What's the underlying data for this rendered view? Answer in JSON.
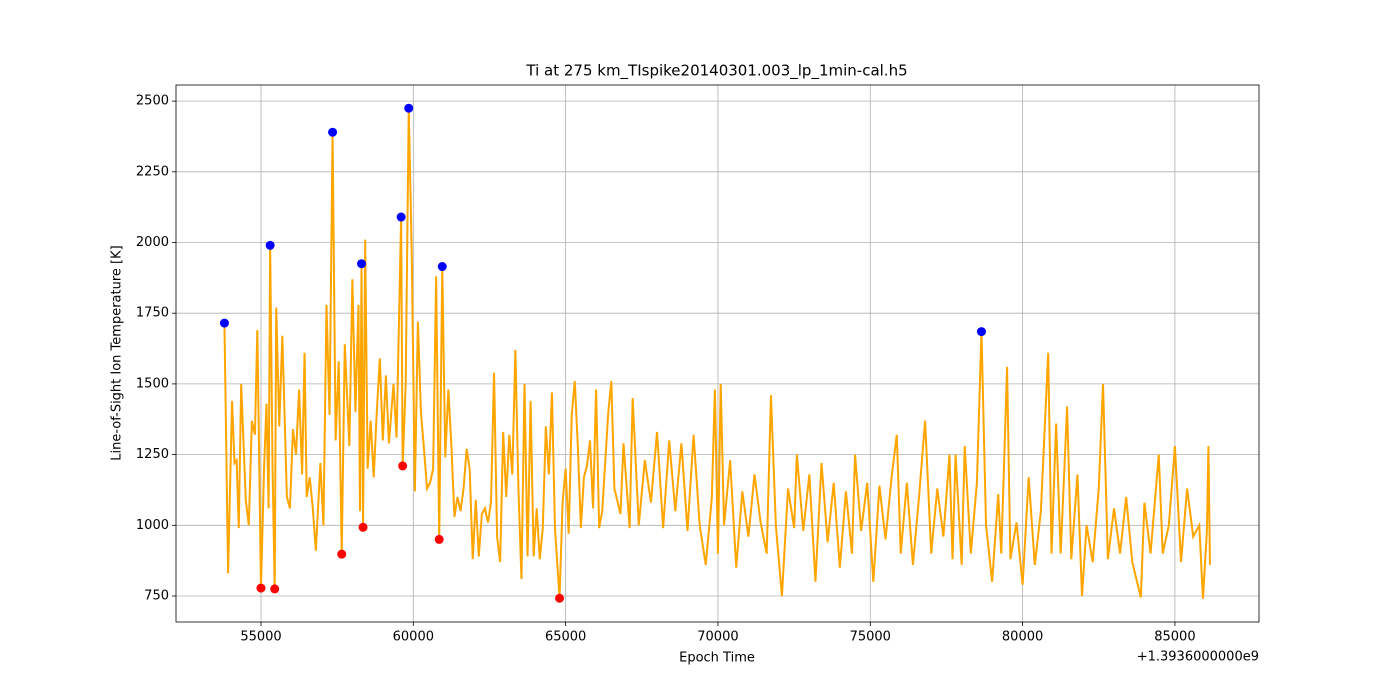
{
  "chart_data": {
    "type": "line",
    "title": "Ti at 275 km_TIspike20140301.003_lp_1min-cal.h5",
    "xlabel": "Epoch Time",
    "ylabel": "Line-of-Sight Ion Temperature [K]",
    "x_offset_label": "+1.3936000000e9",
    "xlim": [
      52210,
      87760
    ],
    "ylim": [
      658,
      2557
    ],
    "xticks": [
      55000,
      60000,
      65000,
      70000,
      75000,
      80000,
      85000
    ],
    "yticks": [
      750,
      1000,
      1250,
      1500,
      1750,
      2000,
      2250,
      2500
    ],
    "grid": true,
    "series": [
      {
        "color": "orange",
        "x": [
          53800,
          53920,
          54050,
          54130,
          54200,
          54270,
          54350,
          54500,
          54600,
          54700,
          54800,
          54880,
          55000,
          55100,
          55180,
          55250,
          55300,
          55380,
          55450,
          55500,
          55600,
          55700,
          55850,
          55950,
          56050,
          56150,
          56250,
          56350,
          56430,
          56500,
          56600,
          56700,
          56800,
          56950,
          57050,
          57150,
          57250,
          57350,
          57450,
          57550,
          57650,
          57750,
          57900,
          58000,
          58100,
          58200,
          58250,
          58300,
          58350,
          58420,
          58500,
          58600,
          58700,
          58800,
          58900,
          59000,
          59100,
          59200,
          59350,
          59450,
          59600,
          59650,
          59750,
          59850,
          59950,
          60050,
          60150,
          60250,
          60350,
          60450,
          60550,
          60650,
          60750,
          60850,
          60950,
          61050,
          61150,
          61250,
          61350,
          61450,
          61550,
          61650,
          61750,
          61850,
          61950,
          62050,
          62150,
          62250,
          62350,
          62450,
          62550,
          62650,
          62750,
          62850,
          62950,
          63050,
          63150,
          63250,
          63350,
          63450,
          63550,
          63650,
          63750,
          63850,
          63950,
          64050,
          64150,
          64250,
          64350,
          64450,
          64550,
          64650,
          64800,
          64900,
          65000,
          65100,
          65200,
          65300,
          65400,
          65500,
          65600,
          65700,
          65800,
          65900,
          66000,
          66100,
          66200,
          66400,
          66500,
          66600,
          66800,
          66900,
          67100,
          67200,
          67400,
          67600,
          67800,
          68000,
          68200,
          68400,
          68600,
          68800,
          69000,
          69200,
          69400,
          69600,
          69800,
          69900,
          70000,
          70090,
          70200,
          70400,
          70600,
          70800,
          71000,
          71200,
          71400,
          71600,
          71740,
          71900,
          72100,
          72300,
          72500,
          72590,
          72800,
          73000,
          73200,
          73400,
          73600,
          73800,
          74000,
          74200,
          74400,
          74500,
          74700,
          74900,
          75100,
          75300,
          75500,
          75700,
          75870,
          76000,
          76200,
          76400,
          76600,
          76800,
          77000,
          77200,
          77400,
          77600,
          77700,
          77800,
          78000,
          78100,
          78300,
          78500,
          78650,
          78800,
          79000,
          79200,
          79300,
          79490,
          79600,
          79800,
          80000,
          80200,
          80400,
          80600,
          80840,
          80950,
          81100,
          81250,
          81460,
          81600,
          81800,
          81950,
          82100,
          82300,
          82500,
          82640,
          82800,
          83000,
          83200,
          83400,
          83600,
          83880,
          84000,
          84200,
          84470,
          84600,
          84800,
          85000,
          85200,
          85400,
          85600,
          85800,
          85920,
          86050,
          86100,
          86150
        ],
        "values": [
          1715,
          830,
          1440,
          1220,
          1230,
          990,
          1500,
          1090,
          1000,
          1370,
          1320,
          1690,
          778,
          1200,
          1430,
          1060,
          1990,
          1200,
          775,
          1770,
          1350,
          1670,
          1100,
          1060,
          1340,
          1250,
          1480,
          1180,
          1610,
          1100,
          1170,
          1060,
          910,
          1220,
          1000,
          1780,
          1390,
          2390,
          1300,
          1580,
          898,
          1640,
          1280,
          1870,
          1400,
          1780,
          1050,
          1925,
          993,
          2010,
          1200,
          1370,
          1170,
          1400,
          1590,
          1300,
          1530,
          1290,
          1500,
          1310,
          2090,
          1210,
          1500,
          2475,
          1950,
          1120,
          1720,
          1400,
          1270,
          1130,
          1150,
          1200,
          1880,
          950,
          1915,
          1240,
          1480,
          1280,
          1030,
          1100,
          1050,
          1130,
          1270,
          1200,
          880,
          1090,
          890,
          1040,
          1060,
          1010,
          1080,
          1540,
          960,
          870,
          1330,
          1100,
          1320,
          1180,
          1620,
          1130,
          810,
          1500,
          890,
          1440,
          890,
          1060,
          880,
          990,
          1350,
          1180,
          1470,
          990,
          742,
          1080,
          1200,
          970,
          1390,
          1510,
          1280,
          990,
          1170,
          1210,
          1300,
          1060,
          1480,
          990,
          1050,
          1400,
          1510,
          1130,
          1040,
          1290,
          990,
          1450,
          1000,
          1230,
          1080,
          1330,
          990,
          1300,
          1050,
          1290,
          980,
          1320,
          1000,
          860,
          1100,
          1480,
          900,
          1500,
          1000,
          1230,
          850,
          1120,
          960,
          1180,
          1010,
          900,
          1460,
          1000,
          750,
          1130,
          990,
          1250,
          980,
          1180,
          800,
          1220,
          940,
          1150,
          850,
          1120,
          900,
          1250,
          980,
          1150,
          800,
          1140,
          950,
          1170,
          1320,
          900,
          1150,
          860,
          1100,
          1370,
          900,
          1130,
          960,
          1250,
          880,
          1250,
          860,
          1280,
          900,
          1150,
          1685,
          1000,
          800,
          1110,
          900,
          1560,
          880,
          1010,
          790,
          1170,
          860,
          1050,
          1610,
          900,
          1360,
          900,
          1420,
          880,
          1180,
          750,
          1000,
          870,
          1130,
          1500,
          880,
          1060,
          900,
          1100,
          870,
          745,
          1080,
          900,
          1250,
          900,
          1000,
          1280,
          870,
          1130,
          960,
          1000,
          740,
          980,
          1280,
          860
        ]
      },
      {
        "color": "blue",
        "x": [
          53800,
          55300,
          57350,
          58300,
          59600,
          59850,
          60950,
          78650
        ],
        "values": [
          1715,
          1990,
          2390,
          1925,
          2090,
          2475,
          1915,
          1685
        ]
      },
      {
        "color": "red",
        "x": [
          55000,
          55450,
          57650,
          58350,
          59650,
          60850,
          64800
        ],
        "values": [
          778,
          775,
          898,
          993,
          1210,
          950,
          742
        ]
      }
    ]
  }
}
